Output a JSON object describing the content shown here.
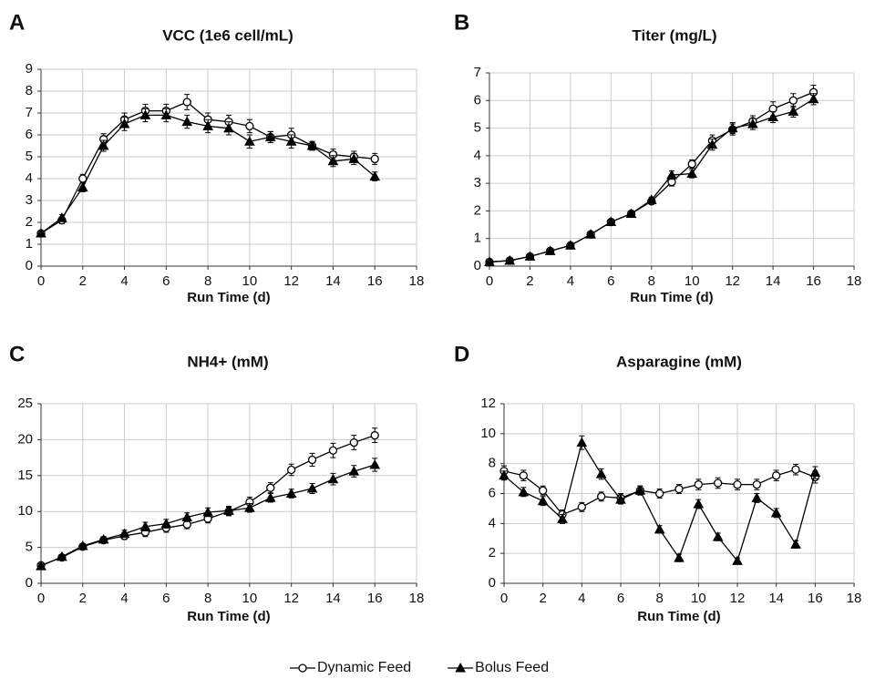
{
  "chart_data": [
    {
      "type": "line",
      "label": "A",
      "title": "VCC (1e6 cell/mL)",
      "xlabel": "Run Time (d)",
      "x": [
        0,
        1,
        2,
        3,
        4,
        5,
        6,
        7,
        8,
        9,
        10,
        11,
        12,
        13,
        14,
        15,
        16
      ],
      "series": [
        {
          "name": "Dynamic Feed",
          "color": "#000000",
          "marker": "circle",
          "values": [
            1.5,
            2.1,
            4.0,
            5.8,
            6.7,
            7.1,
            7.1,
            7.5,
            6.7,
            6.6,
            6.4,
            5.9,
            6.0,
            5.5,
            5.1,
            5.0,
            4.9
          ],
          "errors": [
            0.1,
            0.15,
            0.2,
            0.25,
            0.3,
            0.3,
            0.3,
            0.35,
            0.3,
            0.3,
            0.3,
            0.25,
            0.3,
            0.2,
            0.25,
            0.25,
            0.25
          ]
        },
        {
          "name": "Bolus Feed",
          "color": "#000000",
          "marker": "triangle",
          "values": [
            1.5,
            2.2,
            3.6,
            5.5,
            6.5,
            6.9,
            6.9,
            6.6,
            6.4,
            6.3,
            5.7,
            5.9,
            5.7,
            5.5,
            4.8,
            4.9,
            4.1
          ],
          "errors": [
            0.1,
            0.15,
            0.2,
            0.25,
            0.3,
            0.3,
            0.3,
            0.3,
            0.3,
            0.3,
            0.3,
            0.25,
            0.3,
            0.2,
            0.25,
            0.25,
            0.2
          ]
        }
      ],
      "xlim": [
        0,
        18
      ],
      "xticks": [
        0,
        2,
        4,
        6,
        8,
        10,
        12,
        14,
        16,
        18
      ],
      "ylim": [
        0,
        9
      ],
      "yticks": [
        0,
        1,
        2,
        3,
        4,
        5,
        6,
        7,
        8,
        9
      ],
      "grid": true
    },
    {
      "type": "line",
      "label": "B",
      "title": "Titer (mg/L)",
      "xlabel": "Run Time (d)",
      "x": [
        0,
        1,
        2,
        3,
        4,
        5,
        6,
        7,
        8,
        9,
        10,
        11,
        12,
        13,
        14,
        15,
        16
      ],
      "series": [
        {
          "color": "#000000",
          "marker": "circle",
          "values": [
            0.15,
            0.2,
            0.35,
            0.55,
            0.75,
            1.15,
            1.6,
            1.9,
            2.35,
            3.05,
            3.7,
            4.55,
            4.95,
            5.25,
            5.7,
            6.0,
            6.3
          ],
          "errors": [
            0.05,
            0.05,
            0.05,
            0.05,
            0.05,
            0.05,
            0.05,
            0.08,
            0.1,
            0.15,
            0.15,
            0.2,
            0.2,
            0.2,
            0.25,
            0.25,
            0.25
          ]
        },
        {
          "color": "#000000",
          "marker": "triangle",
          "values": [
            0.15,
            0.2,
            0.35,
            0.55,
            0.75,
            1.15,
            1.6,
            1.9,
            2.4,
            3.3,
            3.35,
            4.4,
            5.0,
            5.15,
            5.4,
            5.6,
            6.05
          ],
          "errors": [
            0.05,
            0.05,
            0.05,
            0.05,
            0.05,
            0.05,
            0.05,
            0.08,
            0.1,
            0.15,
            0.15,
            0.2,
            0.2,
            0.2,
            0.2,
            0.2,
            0.2
          ]
        }
      ],
      "xlim": [
        0,
        18
      ],
      "xticks": [
        0,
        2,
        4,
        6,
        8,
        10,
        12,
        14,
        16,
        18
      ],
      "ylim": [
        0,
        7
      ],
      "yticks": [
        0,
        1,
        2,
        3,
        4,
        5,
        6,
        7
      ],
      "grid": true
    },
    {
      "type": "line",
      "label": "C",
      "title": "NH4+ (mM)",
      "xlabel": "Run Time (d)",
      "x": [
        0,
        1,
        2,
        3,
        4,
        5,
        6,
        7,
        8,
        9,
        10,
        11,
        12,
        13,
        14,
        15,
        16
      ],
      "series": [
        {
          "color": "#000000",
          "marker": "circle",
          "values": [
            2.5,
            3.6,
            5.1,
            6.0,
            6.6,
            7.1,
            7.7,
            8.2,
            9.0,
            10.0,
            11.3,
            13.3,
            15.8,
            17.2,
            18.5,
            19.6,
            20.6
          ],
          "errors": [
            0.3,
            0.3,
            0.3,
            0.4,
            0.5,
            0.6,
            0.6,
            0.6,
            0.6,
            0.6,
            0.7,
            0.7,
            0.8,
            0.9,
            1.0,
            1.0,
            1.0
          ]
        },
        {
          "color": "#000000",
          "marker": "triangle",
          "values": [
            2.4,
            3.7,
            5.2,
            6.1,
            6.9,
            7.9,
            8.3,
            9.2,
            9.9,
            10.1,
            10.5,
            11.9,
            12.5,
            13.2,
            14.5,
            15.6,
            16.5
          ],
          "errors": [
            0.3,
            0.3,
            0.3,
            0.4,
            0.5,
            0.6,
            0.6,
            0.6,
            0.6,
            0.6,
            0.6,
            0.6,
            0.6,
            0.7,
            0.8,
            0.8,
            0.9
          ]
        }
      ],
      "xlim": [
        0,
        18
      ],
      "xticks": [
        0,
        2,
        4,
        6,
        8,
        10,
        12,
        14,
        16,
        18
      ],
      "ylim": [
        0,
        25
      ],
      "yticks": [
        0,
        5,
        10,
        15,
        20,
        25
      ],
      "grid": true
    },
    {
      "type": "line",
      "label": "D",
      "title": "Asparagine (mM)",
      "xlabel": "Run Time (d)",
      "x": [
        0,
        1,
        2,
        3,
        4,
        5,
        6,
        7,
        8,
        9,
        10,
        11,
        12,
        13,
        14,
        15,
        16
      ],
      "series": [
        {
          "color": "#000000",
          "marker": "circle",
          "values": [
            7.5,
            7.2,
            6.2,
            4.6,
            5.1,
            5.8,
            5.7,
            6.2,
            6.0,
            6.3,
            6.6,
            6.7,
            6.6,
            6.6,
            7.2,
            7.6,
            7.1
          ],
          "errors": [
            0.35,
            0.35,
            0.3,
            0.3,
            0.3,
            0.3,
            0.3,
            0.3,
            0.3,
            0.3,
            0.35,
            0.35,
            0.35,
            0.35,
            0.35,
            0.35,
            0.4
          ]
        },
        {
          "color": "#000000",
          "marker": "triangle",
          "values": [
            7.2,
            6.1,
            5.5,
            4.3,
            9.4,
            7.3,
            5.6,
            6.2,
            3.6,
            1.7,
            5.3,
            3.1,
            1.5,
            5.7,
            4.7,
            2.6,
            7.4
          ],
          "errors": [
            0.3,
            0.3,
            0.3,
            0.3,
            0.45,
            0.35,
            0.3,
            0.3,
            0.25,
            0.25,
            0.3,
            0.25,
            0.2,
            0.3,
            0.3,
            0.25,
            0.4
          ]
        }
      ],
      "xlim": [
        0,
        18
      ],
      "xticks": [
        0,
        2,
        4,
        6,
        8,
        10,
        12,
        14,
        16,
        18
      ],
      "ylim": [
        0,
        12
      ],
      "yticks": [
        0,
        2,
        4,
        6,
        8,
        10,
        12
      ],
      "grid": true
    }
  ]
}
